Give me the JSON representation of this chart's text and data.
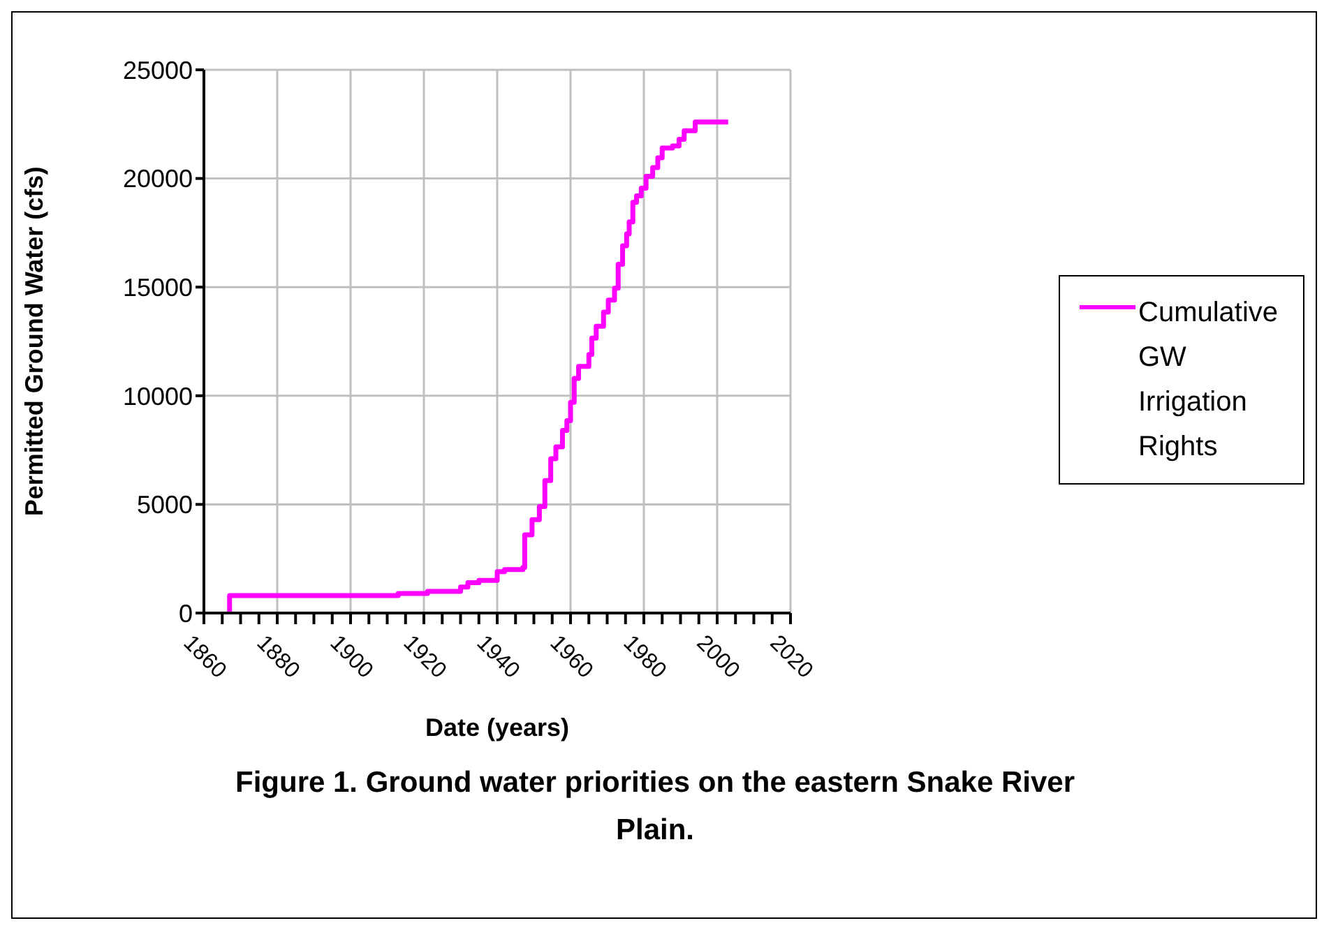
{
  "chart_data": {
    "type": "step",
    "title": "Figure 1.  Ground water priorities on the eastern Snake River Plain.",
    "xlabel": "Date (years)",
    "ylabel": "Permitted Ground Water (cfs)",
    "series": [
      {
        "name": "Cumulative GW Irrigation Rights",
        "color": "#ff00ff",
        "x": [
          1867,
          1867,
          1913,
          1921,
          1930,
          1932,
          1935,
          1940,
          1942,
          1947,
          1947.5,
          1949.5,
          1951.5,
          1953,
          1954.6,
          1956,
          1957.8,
          1959,
          1960,
          1961,
          1962.2,
          1965,
          1965.8,
          1967,
          1969,
          1970.3,
          1972,
          1973,
          1974.2,
          1975.3,
          1976,
          1977,
          1978,
          1979.3,
          1980.6,
          1982.4,
          1983.8,
          1985,
          1987.8,
          1989.6,
          1991,
          1994,
          2003
        ],
        "values": [
          0,
          800,
          900,
          1000,
          1200,
          1400,
          1500,
          1900,
          2000,
          2100,
          3600,
          4300,
          4900,
          6100,
          7100,
          7650,
          8400,
          8850,
          9700,
          10800,
          11350,
          11900,
          12650,
          13200,
          13850,
          14400,
          14950,
          16050,
          16900,
          17450,
          18000,
          18900,
          19200,
          19550,
          20100,
          20500,
          20950,
          21400,
          21500,
          21800,
          22200,
          22600,
          22600
        ]
      }
    ],
    "xlim": [
      1860,
      2020
    ],
    "xticks": [
      1860,
      {
        "value": 1865,
        "label": null
      },
      {
        "value": 1870,
        "label": null
      },
      {
        "value": 1875,
        "label": null
      },
      1880,
      {
        "value": 1885,
        "label": null
      },
      {
        "value": 1890,
        "label": null
      },
      {
        "value": 1895,
        "label": null
      },
      1900,
      {
        "value": 1905,
        "label": null
      },
      {
        "value": 1910,
        "label": null
      },
      {
        "value": 1915,
        "label": null
      },
      1920,
      {
        "value": 1925,
        "label": null
      },
      {
        "value": 1930,
        "label": null
      },
      {
        "value": 1935,
        "label": null
      },
      1940,
      {
        "value": 1945,
        "label": null
      },
      {
        "value": 1950,
        "label": null
      },
      {
        "value": 1955,
        "label": null
      },
      1960,
      {
        "value": 1965,
        "label": null
      },
      {
        "value": 1970,
        "label": null
      },
      {
        "value": 1975,
        "label": null
      },
      1980,
      {
        "value": 1985,
        "label": null
      },
      {
        "value": 1990,
        "label": null
      },
      {
        "value": 1995,
        "label": null
      },
      2000,
      {
        "value": 2005,
        "label": null
      },
      {
        "value": 2010,
        "label": null
      },
      {
        "value": 2015,
        "label": null
      },
      2020
    ],
    "ylim": [
      0,
      25000
    ],
    "yticks": [
      0,
      5000,
      10000,
      15000,
      20000,
      25000
    ],
    "grid": true,
    "legend": "right",
    "marker": "none",
    "line_style": "solid"
  }
}
